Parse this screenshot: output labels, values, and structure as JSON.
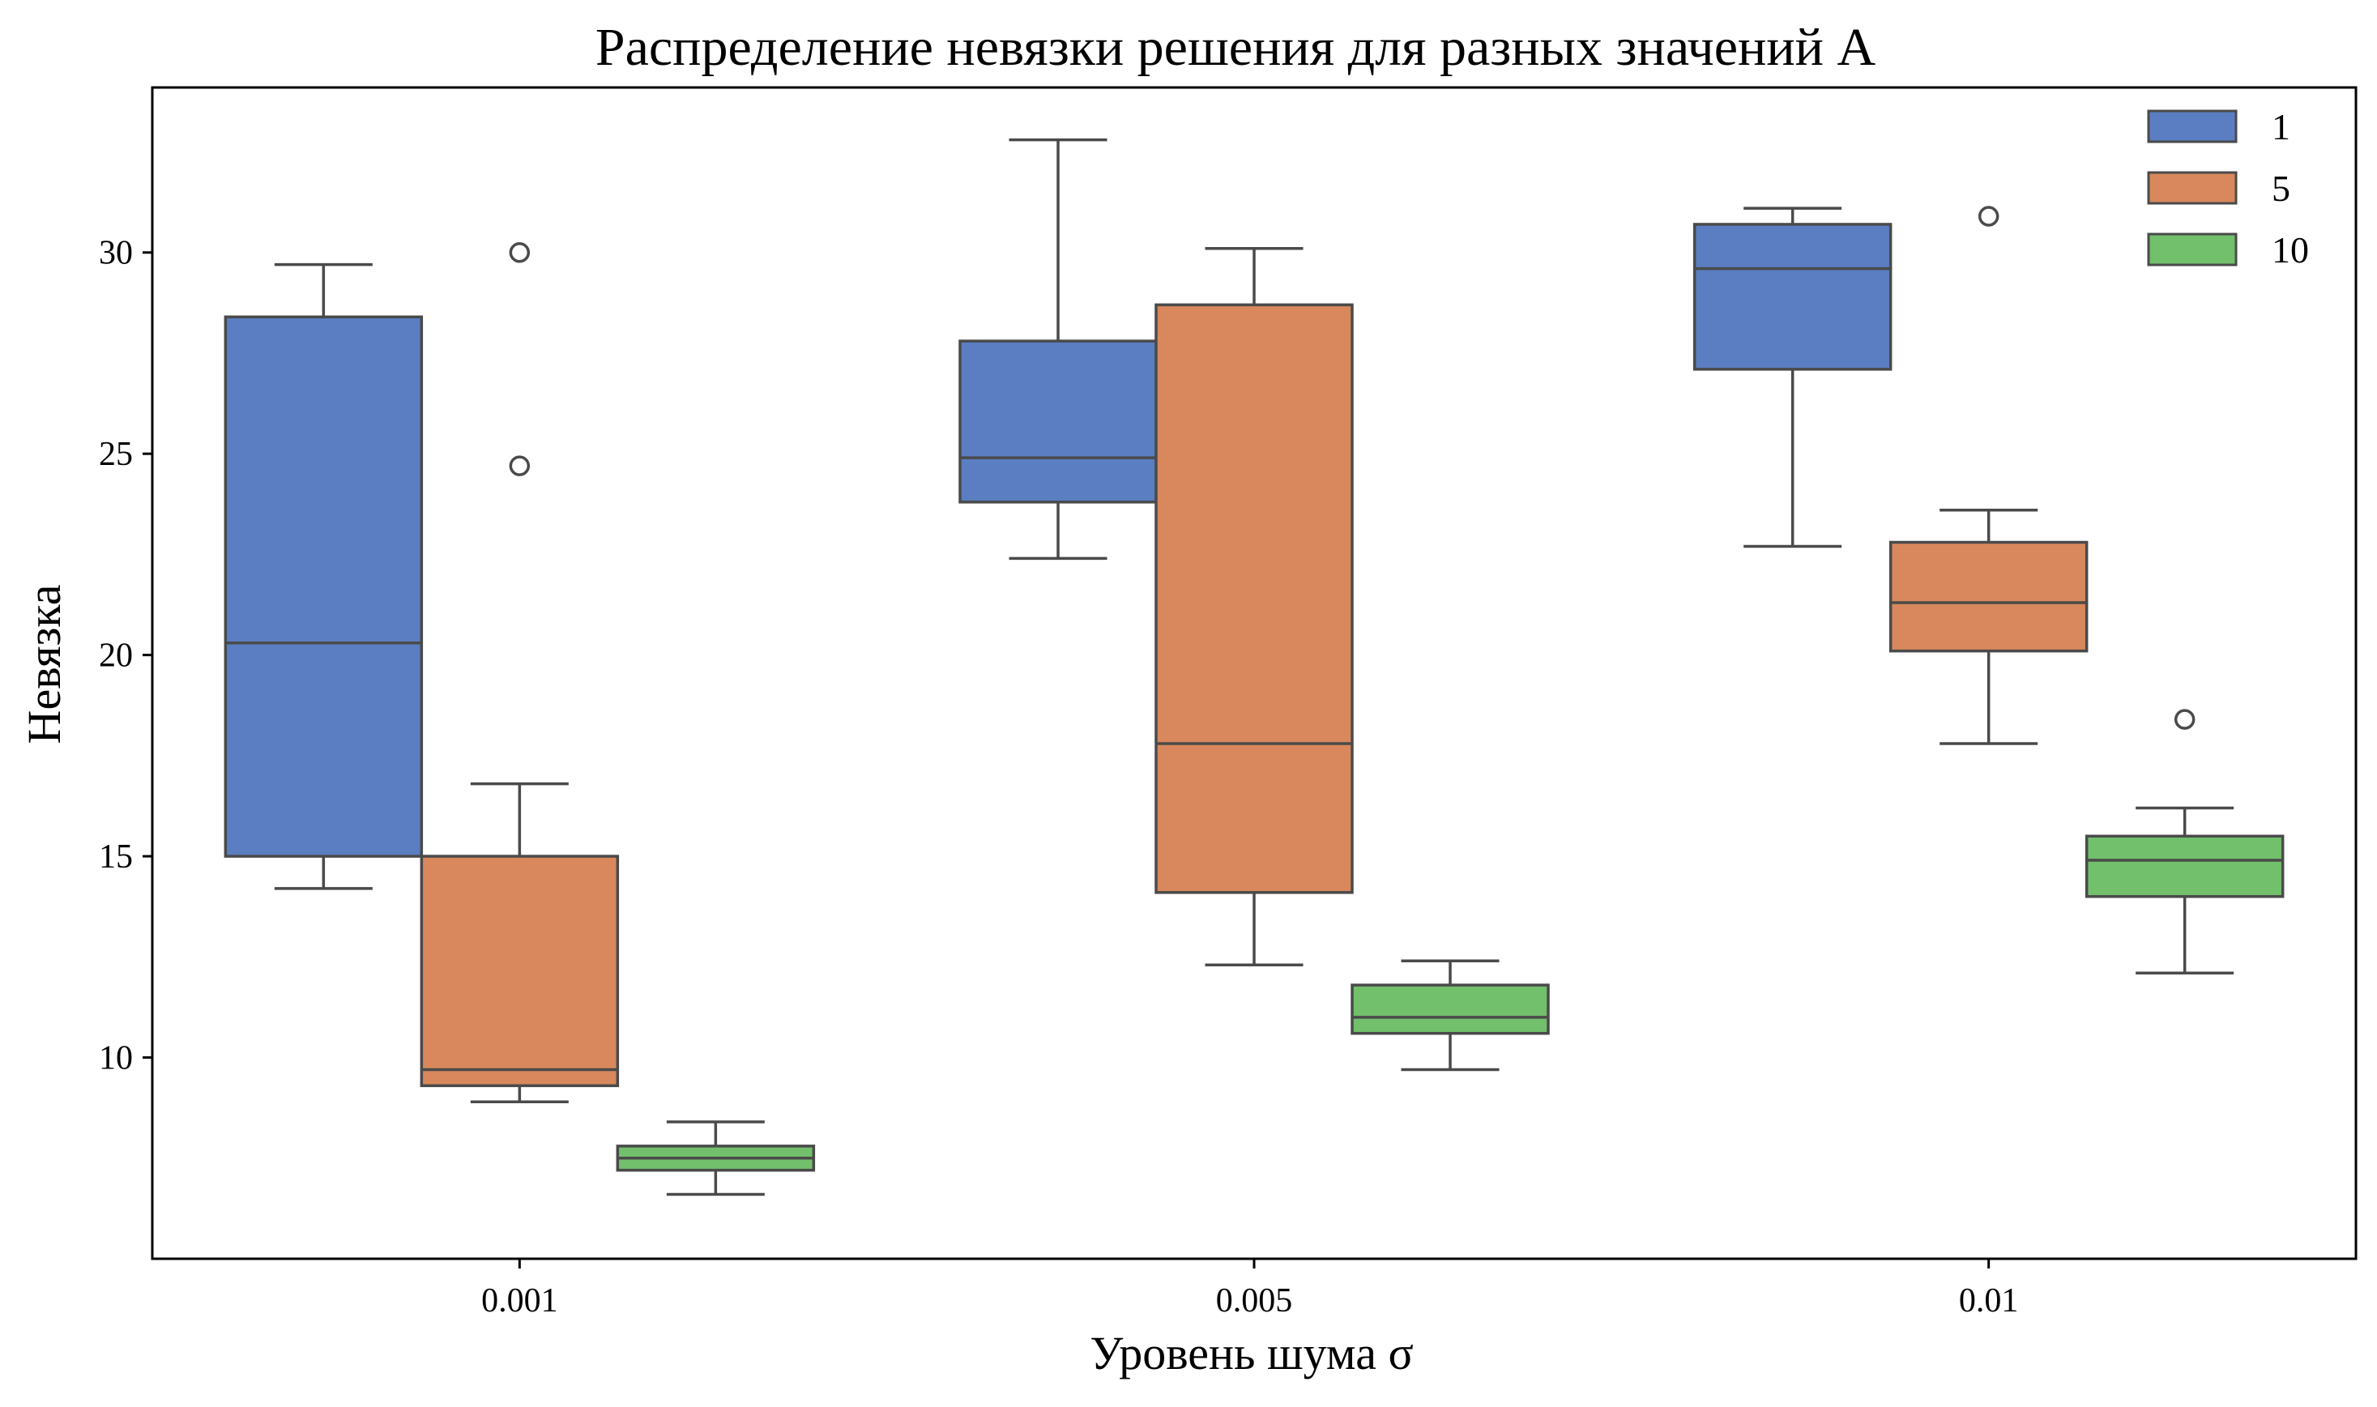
{
  "chart_data": {
    "type": "box",
    "title": "Распределение невязки решения для разных значений A",
    "xlabel": "Уровень шума σ",
    "ylabel": "Невязка",
    "categories": [
      "0.001",
      "0.005",
      "0.01"
    ],
    "ylim": [
      5.0,
      34.1
    ],
    "yticks": [
      10,
      15,
      20,
      25,
      30
    ],
    "ytick_labels": [
      "10",
      "15",
      "20",
      "25",
      "30"
    ],
    "grid": false,
    "legend_position": "top-right",
    "series": [
      {
        "name": "1",
        "color": "#5a7ec1",
        "boxes": [
          {
            "whisker_low": 14.2,
            "q1": 15.0,
            "median": 20.3,
            "q3": 28.4,
            "whisker_high": 29.7,
            "outliers": []
          },
          {
            "whisker_low": 22.4,
            "q1": 23.8,
            "median": 24.9,
            "q3": 27.8,
            "whisker_high": 32.8,
            "outliers": []
          },
          {
            "whisker_low": 22.7,
            "q1": 27.1,
            "median": 29.6,
            "q3": 30.7,
            "whisker_high": 31.1,
            "outliers": []
          }
        ]
      },
      {
        "name": "5",
        "color": "#d8885c",
        "boxes": [
          {
            "whisker_low": 8.9,
            "q1": 9.3,
            "median": 9.7,
            "q3": 15.0,
            "whisker_high": 16.8,
            "outliers": [
              24.7,
              30.0
            ]
          },
          {
            "whisker_low": 12.3,
            "q1": 14.1,
            "median": 17.8,
            "q3": 28.7,
            "whisker_high": 30.1,
            "outliers": []
          },
          {
            "whisker_low": 17.8,
            "q1": 20.1,
            "median": 21.3,
            "q3": 22.8,
            "whisker_high": 23.6,
            "outliers": [
              30.9
            ]
          }
        ]
      },
      {
        "name": "10",
        "color": "#72bf6c",
        "boxes": [
          {
            "whisker_low": 6.6,
            "q1": 7.2,
            "median": 7.5,
            "q3": 7.8,
            "whisker_high": 8.4,
            "outliers": []
          },
          {
            "whisker_low": 9.7,
            "q1": 10.6,
            "median": 11.0,
            "q3": 11.8,
            "whisker_high": 12.4,
            "outliers": []
          },
          {
            "whisker_low": 12.1,
            "q1": 14.0,
            "median": 14.9,
            "q3": 15.5,
            "whisker_high": 16.2,
            "outliers": [
              18.4
            ]
          }
        ]
      }
    ],
    "colors": {
      "line": "#4a4a4a",
      "axis": "#000000"
    }
  }
}
